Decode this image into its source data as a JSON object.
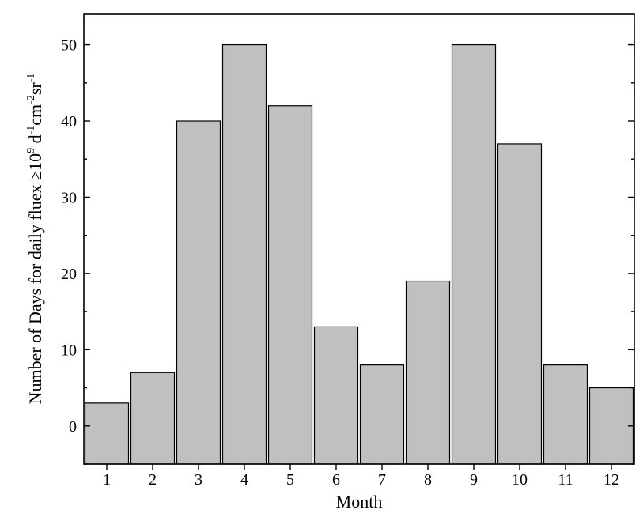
{
  "chart_data": {
    "type": "bar",
    "title": "",
    "xlabel": "Month",
    "ylabel": {
      "main": "Number of Days for daily fluex ≥",
      "ten": "10",
      "exp9": "9",
      "d": "d",
      "exp_m1_a": "-1",
      "cm": "cm",
      "exp_m2": "-2",
      "sr": "sr",
      "exp_m1_b": "-1"
    },
    "categories": [
      "1",
      "2",
      "3",
      "4",
      "5",
      "6",
      "7",
      "8",
      "9",
      "10",
      "11",
      "12"
    ],
    "values": [
      3,
      7,
      40,
      50,
      42,
      13,
      8,
      19,
      50,
      37,
      8,
      5
    ],
    "ylim": [
      -5,
      54
    ],
    "yticks": [
      0,
      10,
      20,
      30,
      40,
      50
    ],
    "grid": false,
    "legend": "none",
    "bar_color": "#c0c0c0",
    "edge_color": "#000000"
  }
}
